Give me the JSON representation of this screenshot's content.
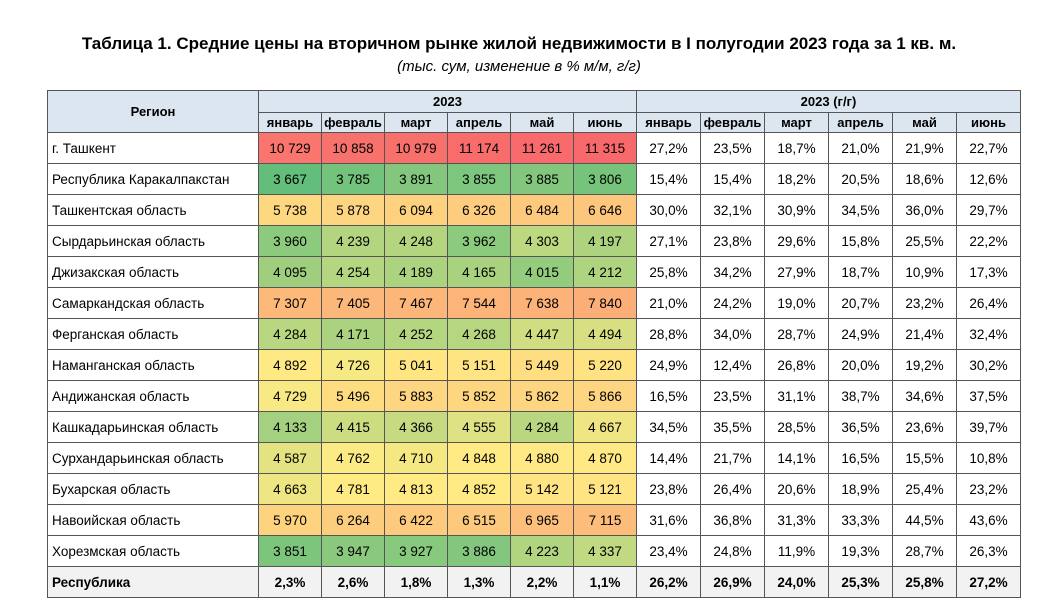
{
  "title": "Таблица 1. Средние цены на вторичном рынке жилой недвижимости в I полугодии 2023 года за 1 кв. м.",
  "subtitle": "(тыс. сум, изменение в % м/м, г/г)",
  "table": {
    "region_header": "Регион",
    "group_headers": [
      "2023",
      "2023 (г/г)"
    ],
    "months": [
      "январь",
      "февраль",
      "март",
      "апрель",
      "май",
      "июнь"
    ],
    "heat_colors": [
      "#63be7b",
      "#ffeb84",
      "#f8696b"
    ],
    "rows": [
      {
        "region": "г. Ташкент",
        "prices": [
          "10 729",
          "10 858",
          "10 979",
          "11 174",
          "11 261",
          "11 315"
        ],
        "yoy": [
          "27,2%",
          "23,5%",
          "18,7%",
          "21,0%",
          "21,9%",
          "22,7%"
        ]
      },
      {
        "region": "Республика Каракалпакстан",
        "prices": [
          "3 667",
          "3 785",
          "3 891",
          "3 855",
          "3 885",
          "3 806"
        ],
        "yoy": [
          "15,4%",
          "15,4%",
          "18,2%",
          "20,5%",
          "18,6%",
          "12,6%"
        ]
      },
      {
        "region": "Ташкентская область",
        "prices": [
          "5 738",
          "5 878",
          "6 094",
          "6 326",
          "6 484",
          "6 646"
        ],
        "yoy": [
          "30,0%",
          "32,1%",
          "30,9%",
          "34,5%",
          "36,0%",
          "29,7%"
        ]
      },
      {
        "region": "Сырдарьинская область",
        "prices": [
          "3 960",
          "4 239",
          "4 248",
          "3 962",
          "4 303",
          "4 197"
        ],
        "yoy": [
          "27,1%",
          "23,8%",
          "29,6%",
          "15,8%",
          "25,5%",
          "22,2%"
        ]
      },
      {
        "region": "Джизакская область",
        "prices": [
          "4 095",
          "4 254",
          "4 189",
          "4 165",
          "4 015",
          "4 212"
        ],
        "yoy": [
          "25,8%",
          "34,2%",
          "27,9%",
          "18,7%",
          "10,9%",
          "17,3%"
        ]
      },
      {
        "region": "Самаркандская область",
        "prices": [
          "7 307",
          "7 405",
          "7 467",
          "7 544",
          "7 638",
          "7 840"
        ],
        "yoy": [
          "21,0%",
          "24,2%",
          "19,0%",
          "20,7%",
          "23,2%",
          "26,4%"
        ]
      },
      {
        "region": "Ферганская область",
        "prices": [
          "4 284",
          "4 171",
          "4 252",
          "4 268",
          "4 447",
          "4 494"
        ],
        "yoy": [
          "28,8%",
          "34,0%",
          "28,7%",
          "24,9%",
          "21,4%",
          "32,4%"
        ]
      },
      {
        "region": "Наманганская область",
        "prices": [
          "4 892",
          "4 726",
          "5 041",
          "5 151",
          "5 449",
          "5 220"
        ],
        "yoy": [
          "24,9%",
          "12,4%",
          "26,8%",
          "20,0%",
          "19,2%",
          "30,2%"
        ]
      },
      {
        "region": "Андижанская область",
        "prices": [
          "4 729",
          "5 496",
          "5 883",
          "5 852",
          "5 862",
          "5 866"
        ],
        "yoy": [
          "16,5%",
          "23,5%",
          "31,1%",
          "38,7%",
          "34,6%",
          "37,5%"
        ]
      },
      {
        "region": "Кашкадарьинская область",
        "prices": [
          "4 133",
          "4 415",
          "4 366",
          "4 555",
          "4 284",
          "4 667"
        ],
        "yoy": [
          "34,5%",
          "35,5%",
          "28,5%",
          "36,5%",
          "23,6%",
          "39,7%"
        ]
      },
      {
        "region": "Сурхандарьинская область",
        "prices": [
          "4 587",
          "4 762",
          "4 710",
          "4 848",
          "4 880",
          "4 870"
        ],
        "yoy": [
          "14,4%",
          "21,7%",
          "14,1%",
          "16,5%",
          "15,5%",
          "10,8%"
        ]
      },
      {
        "region": "Бухарская область",
        "prices": [
          "4 663",
          "4 781",
          "4 813",
          "4 852",
          "5 142",
          "5 121"
        ],
        "yoy": [
          "23,8%",
          "26,4%",
          "20,6%",
          "18,9%",
          "25,4%",
          "23,2%"
        ]
      },
      {
        "region": "Навоийская область",
        "prices": [
          "5 970",
          "6 264",
          "6 422",
          "6 515",
          "6 965",
          "7 115"
        ],
        "yoy": [
          "31,6%",
          "36,8%",
          "31,3%",
          "33,3%",
          "44,5%",
          "43,6%"
        ]
      },
      {
        "region": "Хорезмская область",
        "prices": [
          "3 851",
          "3 947",
          "3 927",
          "3 886",
          "4 223",
          "4 337"
        ],
        "yoy": [
          "23,4%",
          "24,8%",
          "11,9%",
          "19,3%",
          "28,7%",
          "26,3%"
        ]
      }
    ],
    "total": {
      "region": "Республика",
      "prices": [
        "2,3%",
        "2,6%",
        "1,8%",
        "1,3%",
        "2,2%",
        "1,1%"
      ],
      "yoy": [
        "26,2%",
        "26,9%",
        "24,0%",
        "25,3%",
        "25,8%",
        "27,2%"
      ]
    }
  }
}
